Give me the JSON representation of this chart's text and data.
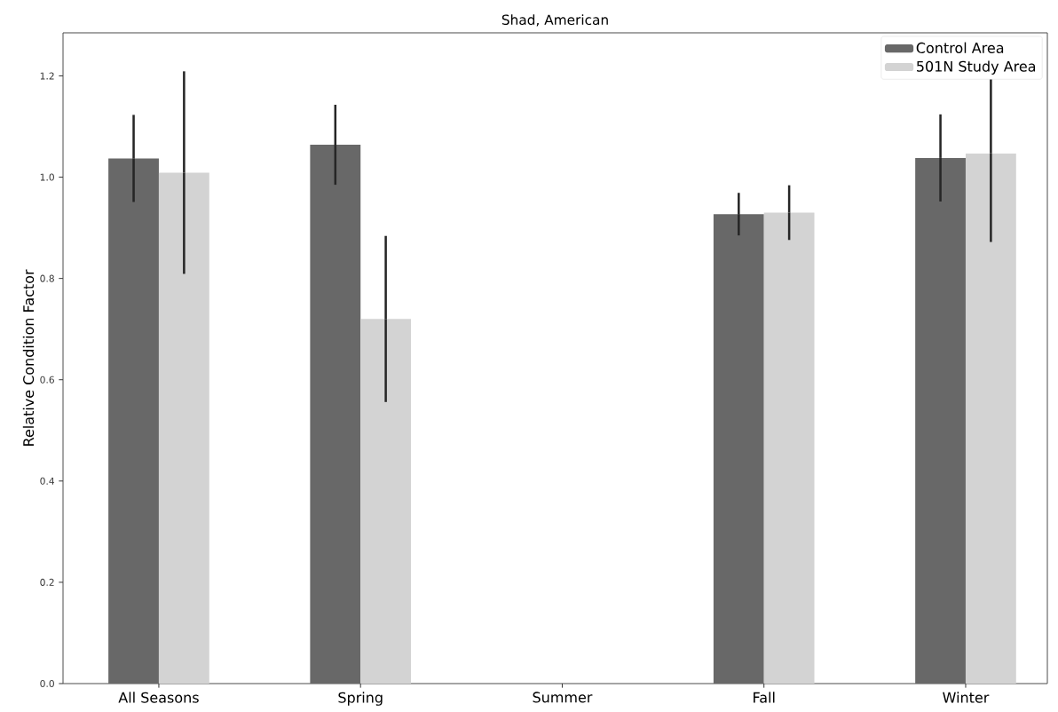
{
  "chart_data": {
    "type": "bar",
    "title": "Shad, American",
    "ylabel": "Relative Condition Factor",
    "categories": [
      "All Seasons",
      "Spring",
      "Summer",
      "Fall",
      "Winter"
    ],
    "series": [
      {
        "name": "Control Area",
        "color": "#686868",
        "values": [
          1.037,
          1.064,
          null,
          0.927,
          1.038
        ],
        "errors": [
          0.086,
          0.079,
          null,
          0.042,
          0.086
        ]
      },
      {
        "name": "501N Study Area",
        "color": "#d3d3d3",
        "values": [
          1.009,
          0.72,
          null,
          0.93,
          1.047
        ],
        "errors": [
          0.2,
          0.164,
          null,
          0.054,
          0.175
        ]
      }
    ],
    "ylim": [
      0,
      1.285
    ],
    "yticks": [
      {
        "value": 0,
        "label": "0.0"
      },
      0.2,
      0.4,
      0.6,
      0.8,
      {
        "value": 1,
        "label": "1.0"
      },
      1.2
    ],
    "grid": false,
    "legend": "top right"
  }
}
